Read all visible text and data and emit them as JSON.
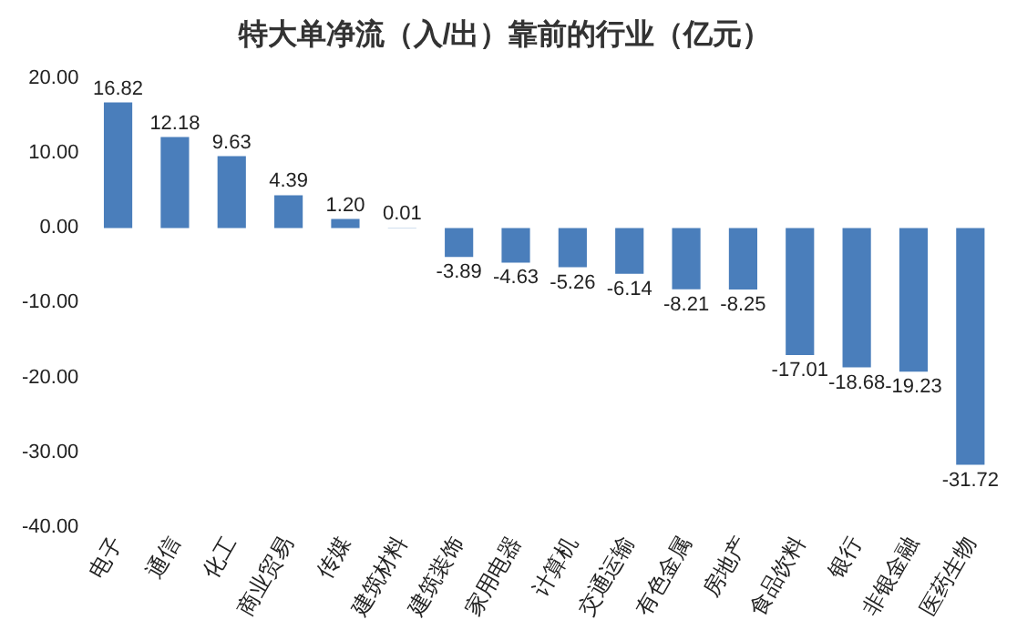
{
  "chart_data": {
    "type": "bar",
    "title": "特大单净流（入/出）靠前的行业（亿元）",
    "categories": [
      "电子",
      "通信",
      "化工",
      "商业贸易",
      "传媒",
      "建筑材料",
      "建筑装饰",
      "家用电器",
      "计算机",
      "交通运输",
      "有色金属",
      "房地产",
      "食品饮料",
      "银行",
      "非银金融",
      "医药生物"
    ],
    "values": [
      16.82,
      12.18,
      9.63,
      4.39,
      1.2,
      0.01,
      -3.89,
      -4.63,
      -5.26,
      -6.14,
      -8.21,
      -8.25,
      -17.01,
      -18.68,
      -19.23,
      -31.72
    ],
    "value_labels": [
      "16.82",
      "12.18",
      "9.63",
      "4.39",
      "1.20",
      "0.01",
      "-3.89",
      "-4.63",
      "-5.26",
      "-6.14",
      "-8.21",
      "-8.25",
      "-17.01",
      "-18.68",
      "-19.23",
      "-31.72"
    ],
    "color": "#4a7ebb",
    "ylim": [
      -40,
      20
    ],
    "yticks": [
      {
        "value": -40,
        "label": "-40.00"
      },
      {
        "value": -30,
        "label": "-30.00"
      },
      {
        "value": -20,
        "label": "-20.00"
      },
      {
        "value": -10,
        "label": "-10.00"
      },
      {
        "value": 0,
        "label": "0.00"
      },
      {
        "value": 10,
        "label": "10.00"
      },
      {
        "value": 20,
        "label": "20.00"
      }
    ],
    "grid": false,
    "legend": false
  }
}
